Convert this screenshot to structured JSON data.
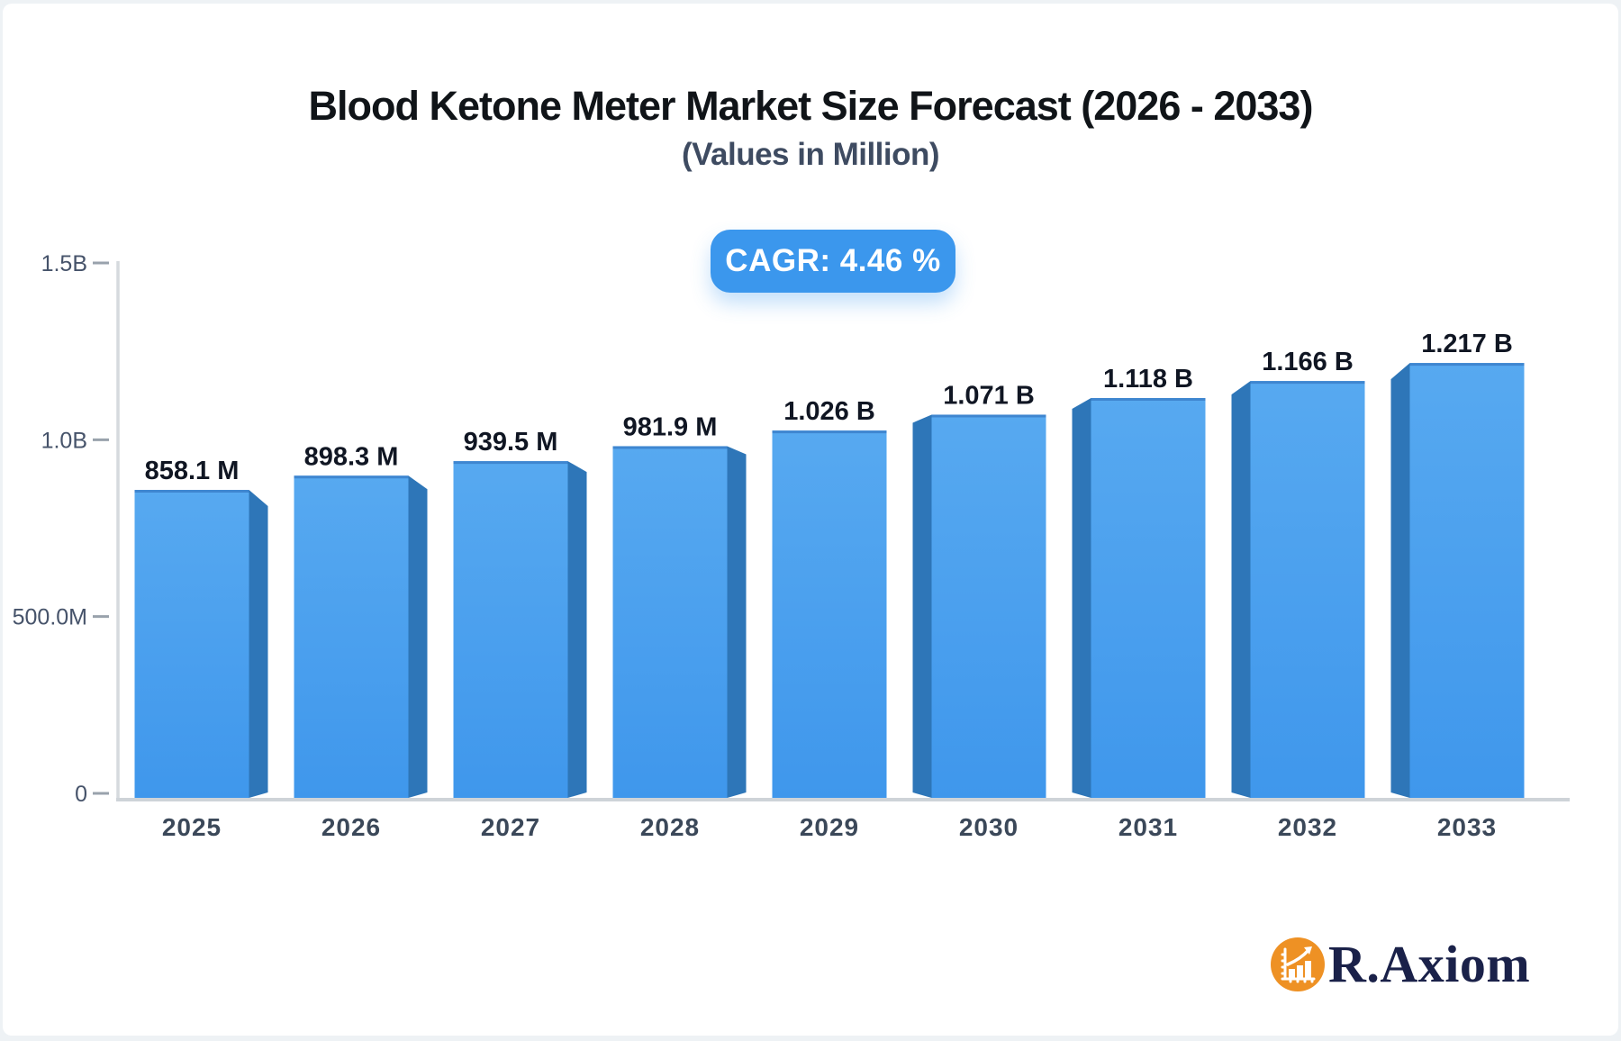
{
  "title": "Blood Ketone Meter Market Size Forecast (2026 - 2033)",
  "subtitle": "(Values in Million)",
  "cagr_label": "CAGR: 4.46 %",
  "brand": {
    "name": "R.Axiom"
  },
  "colors": {
    "background": "#ffffff",
    "bar_face_top": "#57a9f0",
    "bar_face_bottom": "#3f97ec",
    "bar_side": "#2e76b8",
    "bar_top_edge": "#3f86d0",
    "badge_bg": "#3b97ed",
    "badge_text": "#ffffff",
    "y_axis_line": "#d6dade",
    "x_axis_line": "#ced3d8",
    "tick_dash": "#99a2ac",
    "tick_label": "#46536a",
    "x_label": "#3b4859",
    "value_label": "#101623",
    "title_color": "#101418",
    "subtitle_color": "#3e4b61",
    "logo_orange": "#ee9124",
    "logo_text": "#1a2149"
  },
  "chart_data": {
    "type": "bar",
    "title": "Blood Ketone Meter Market Size Forecast (2026 - 2033)",
    "subtitle": "(Values in Million)",
    "cagr_percent": 4.46,
    "unit": "millions",
    "categories": [
      "2025",
      "2026",
      "2027",
      "2028",
      "2029",
      "2030",
      "2031",
      "2032",
      "2033"
    ],
    "values_millions": [
      858.1,
      898.3,
      939.5,
      981.9,
      1026,
      1071,
      1118,
      1166,
      1217
    ],
    "value_labels": [
      "858.1 M",
      "898.3 M",
      "939.5 M",
      "981.9 M",
      "1.026 B",
      "1.071 B",
      "1.118 B",
      "1.166 B",
      "1.217 B"
    ],
    "y_ticks": [
      {
        "label": "0",
        "value": 0
      },
      {
        "label": "500.0M",
        "value": 500
      },
      {
        "label": "1.0B",
        "value": 1000
      },
      {
        "label": "1.5B",
        "value": 1500
      }
    ],
    "ylim": [
      0,
      1500
    ],
    "xlabel": "",
    "ylabel": "",
    "grid": false,
    "legend": false,
    "style": "3d-perspective-bars"
  }
}
